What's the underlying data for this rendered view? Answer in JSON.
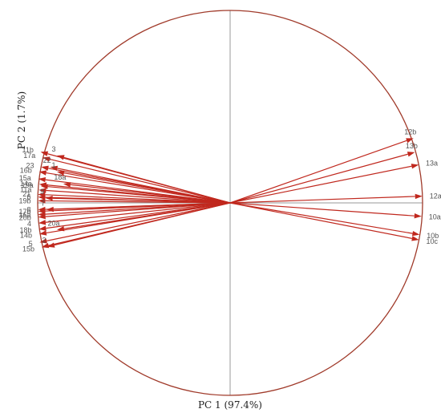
{
  "chart_data": {
    "type": "correlation-circle",
    "xlabel": "PC 1 (97.4%)",
    "ylabel": "PC 2 (1.7%)",
    "xlim": [
      -1,
      1
    ],
    "ylim": [
      -1,
      1
    ],
    "grid": false,
    "colors": {
      "circle": "#a03a2a",
      "vector": "#c0281e",
      "axis": "#999999",
      "label": "#555555"
    },
    "vectors": [
      {
        "label": "11b",
        "x": -0.985,
        "y": 0.265
      },
      {
        "label": "3",
        "x": -0.9,
        "y": 0.246
      },
      {
        "label": "17a",
        "x": -0.975,
        "y": 0.236
      },
      {
        "label": "23",
        "x": -0.982,
        "y": 0.187
      },
      {
        "label": "22",
        "x": -0.935,
        "y": 0.187
      },
      {
        "label": "16b",
        "x": -0.993,
        "y": 0.162
      },
      {
        "label": "1",
        "x": -0.9,
        "y": 0.162
      },
      {
        "label": "15a",
        "x": -0.997,
        "y": 0.125
      },
      {
        "label": "18a",
        "x": -0.867,
        "y": 0.099
      },
      {
        "label": "14a",
        "x": -0.992,
        "y": 0.097
      },
      {
        "label": "19a",
        "x": -0.985,
        "y": 0.088
      },
      {
        "label": "11a",
        "x": -0.994,
        "y": 0.067
      },
      {
        "label": "21",
        "x": -0.999,
        "y": 0.044
      },
      {
        "label": "6",
        "x": -0.998,
        "y": 0.03
      },
      {
        "label": "9",
        "x": -0.96,
        "y": 0.025
      },
      {
        "label": "19b",
        "x": -0.998,
        "y": 0.011
      },
      {
        "label": "8",
        "x": -0.998,
        "y": -0.035
      },
      {
        "label": "7",
        "x": -0.955,
        "y": -0.035
      },
      {
        "label": "17b",
        "x": -0.998,
        "y": -0.044
      },
      {
        "label": "16a",
        "x": -0.998,
        "y": -0.061
      },
      {
        "label": "20b",
        "x": -0.997,
        "y": -0.074
      },
      {
        "label": "4",
        "x": -0.996,
        "y": -0.105
      },
      {
        "label": "18b",
        "x": -0.994,
        "y": -0.137
      },
      {
        "label": "20a",
        "x": -0.9,
        "y": -0.14
      },
      {
        "label": "14b",
        "x": -0.992,
        "y": -0.162
      },
      {
        "label": "5",
        "x": -0.99,
        "y": -0.205
      },
      {
        "label": "15b",
        "x": -0.98,
        "y": -0.23
      },
      {
        "label": "2",
        "x": -0.95,
        "y": -0.228
      },
      {
        "label": "12b",
        "x": 0.953,
        "y": 0.336
      },
      {
        "label": "13b",
        "x": 0.96,
        "y": 0.263
      },
      {
        "label": "13a",
        "x": 0.98,
        "y": 0.198
      },
      {
        "label": "12a",
        "x": 0.999,
        "y": 0.035
      },
      {
        "label": "10a",
        "x": 0.995,
        "y": -0.07
      },
      {
        "label": "10b",
        "x": 0.985,
        "y": -0.165
      },
      {
        "label": "10c",
        "x": 0.982,
        "y": -0.192
      }
    ]
  }
}
